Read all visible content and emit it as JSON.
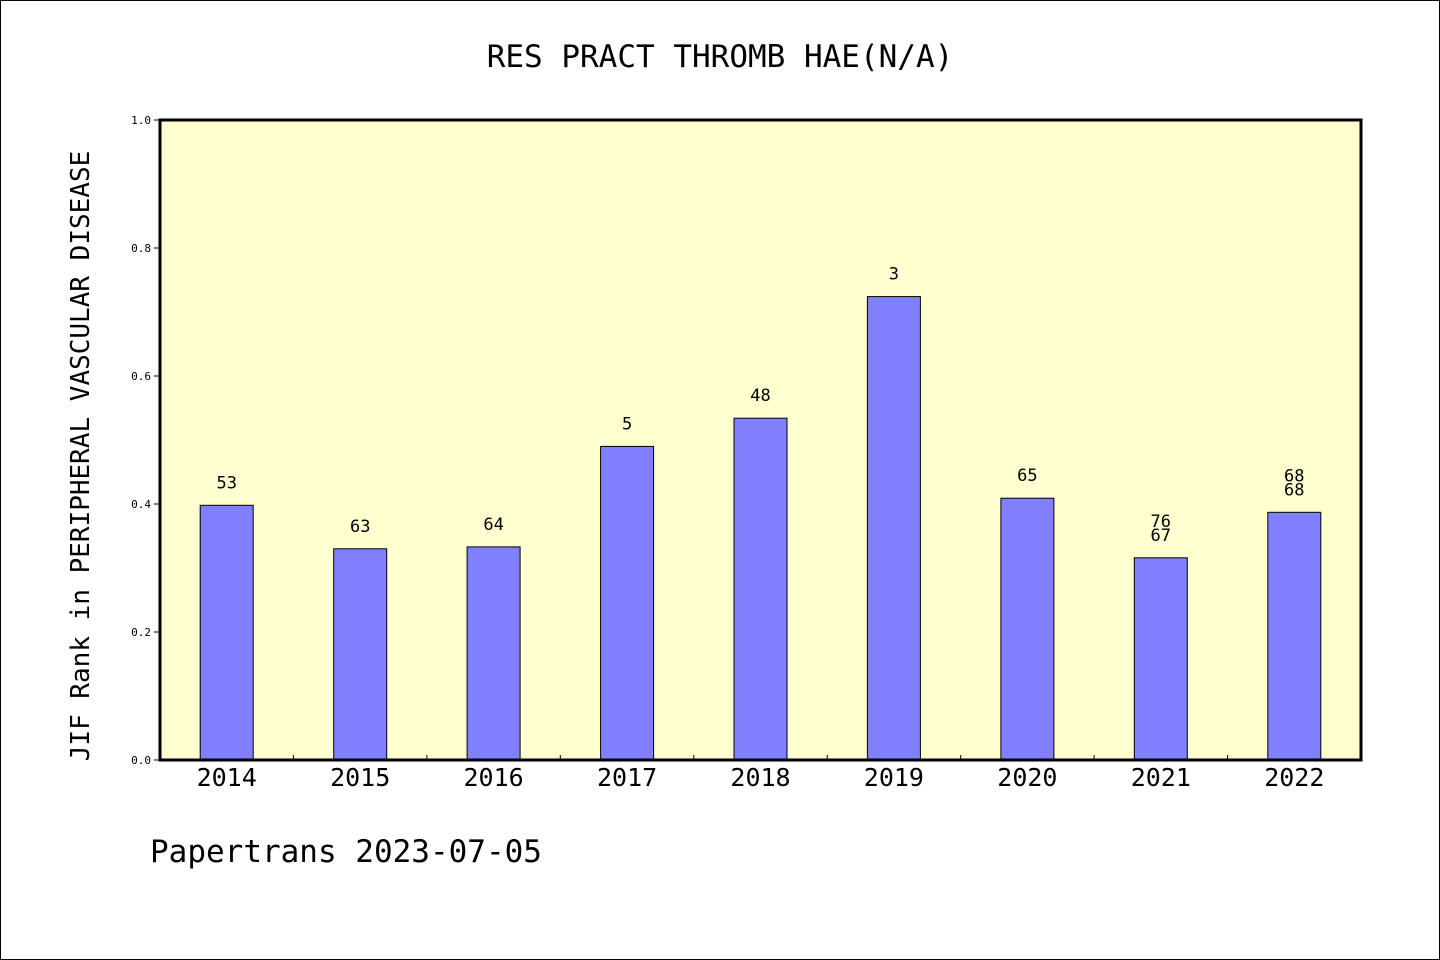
{
  "chart_data": {
    "type": "bar",
    "title": "RES PRACT THROMB HAE(N/A)",
    "xlabel": "",
    "ylabel": "JIF Rank in PERIPHERAL VASCULAR DISEASE",
    "ylim": [
      0,
      1.0
    ],
    "yticks": [
      "0.0",
      "0.2",
      "0.4",
      "0.6",
      "0.8",
      "1.0"
    ],
    "categories": [
      "2014",
      "2015",
      "2016",
      "2017",
      "2018",
      "2019",
      "2020",
      "2021",
      "2022"
    ],
    "values": [
      0.398,
      0.33,
      0.333,
      0.49,
      0.534,
      0.724,
      0.409,
      0.316,
      0.387
    ],
    "bar_labels": [
      [
        "53"
      ],
      [
        "63"
      ],
      [
        "64"
      ],
      [
        "5"
      ],
      [
        "48"
      ],
      [
        "3"
      ],
      [
        "65"
      ],
      [
        "76",
        "67"
      ],
      [
        "68",
        "68"
      ]
    ],
    "plot_background": "#ffffd0",
    "bar_color": "#8080ff",
    "grid": false
  },
  "footer": "Papertrans 2023-07-05"
}
